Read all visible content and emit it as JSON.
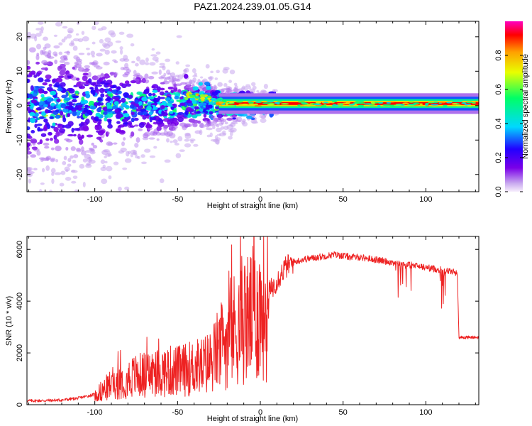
{
  "title": "PAZ1.2024.239.01.05.G14",
  "colors": {
    "snr_line": "#ee2222",
    "axis": "#000000",
    "background": "#ffffff"
  },
  "chart_data": [
    {
      "type": "heatmap",
      "xlabel": "Height of straight line (km)",
      "ylabel": "Frequency (Hz)",
      "xlim": [
        -141,
        132
      ],
      "ylim": [
        -25,
        24.5
      ],
      "x_ticks": [
        -100,
        -50,
        0,
        50,
        100
      ],
      "x_tick_labels": [
        "-100",
        "-50",
        "0",
        "50",
        "100"
      ],
      "y_ticks": [
        -20,
        -10,
        0,
        10,
        20
      ],
      "y_tick_labels": [
        "-20",
        "-10",
        "0",
        "10",
        "20"
      ],
      "colorbar": {
        "label": "Normalized spectral amplitude",
        "range": [
          0,
          1
        ],
        "ticks": [
          0.0,
          0.2,
          0.4,
          0.6,
          0.8
        ],
        "tick_labels": [
          "0.0",
          "0.2",
          "0.4",
          "0.6",
          "0.8"
        ],
        "colormap": [
          "#f7eefc",
          "#c8a8ef",
          "#7a00e8",
          "#2200ff",
          "#00d8ff",
          "#00ff66",
          "#e8ff00",
          "#ffa000",
          "#ff0000",
          "#ff00c0"
        ]
      },
      "features": {
        "strong_tone": {
          "x_start": -25,
          "x_end": 132,
          "frequency": 0.6,
          "amplitude": 0.9
        },
        "diffuse_spread": {
          "x_start": -141,
          "x_end": -20,
          "max_spread_hz": 24
        }
      },
      "grid": false
    },
    {
      "type": "line",
      "xlabel": "Height of straight line (km)",
      "ylabel": "SNR (10 * v/v)",
      "xlim": [
        -141,
        132
      ],
      "ylim": [
        0,
        6500
      ],
      "x_ticks": [
        -100,
        -50,
        0,
        50,
        100
      ],
      "x_tick_labels": [
        "-100",
        "-50",
        "0",
        "50",
        "100"
      ],
      "y_ticks": [
        0,
        2000,
        4000,
        6000
      ],
      "y_tick_labels": [
        "0",
        "2000",
        "4000",
        "6000"
      ],
      "series": [
        {
          "x": [
            -141,
            -130,
            -120,
            -110,
            -100,
            -95,
            -90,
            -85,
            -80,
            -75,
            -70,
            -65,
            -60,
            -55,
            -50,
            -45,
            -40,
            -35,
            -30,
            -25,
            -20,
            -15,
            -10,
            -5,
            0,
            5,
            10,
            15,
            20,
            25,
            30,
            35,
            40,
            45,
            50,
            55,
            60,
            65,
            70,
            75,
            80,
            85,
            90,
            95,
            100,
            105,
            110,
            115,
            119,
            120,
            125,
            132
          ],
          "y": [
            150,
            160,
            180,
            250,
            400,
            600,
            850,
            1000,
            1100,
            1200,
            1250,
            1300,
            1350,
            1400,
            1400,
            1450,
            1550,
            1600,
            1800,
            2300,
            2800,
            3200,
            3500,
            3700,
            3900,
            4300,
            4800,
            5300,
            5500,
            5600,
            5650,
            5700,
            5750,
            5800,
            5750,
            5700,
            5700,
            5650,
            5600,
            5550,
            5500,
            5450,
            5400,
            5350,
            5300,
            5250,
            5200,
            5150,
            5100,
            2600,
            2600,
            2600
          ]
        }
      ],
      "grid": false
    }
  ]
}
